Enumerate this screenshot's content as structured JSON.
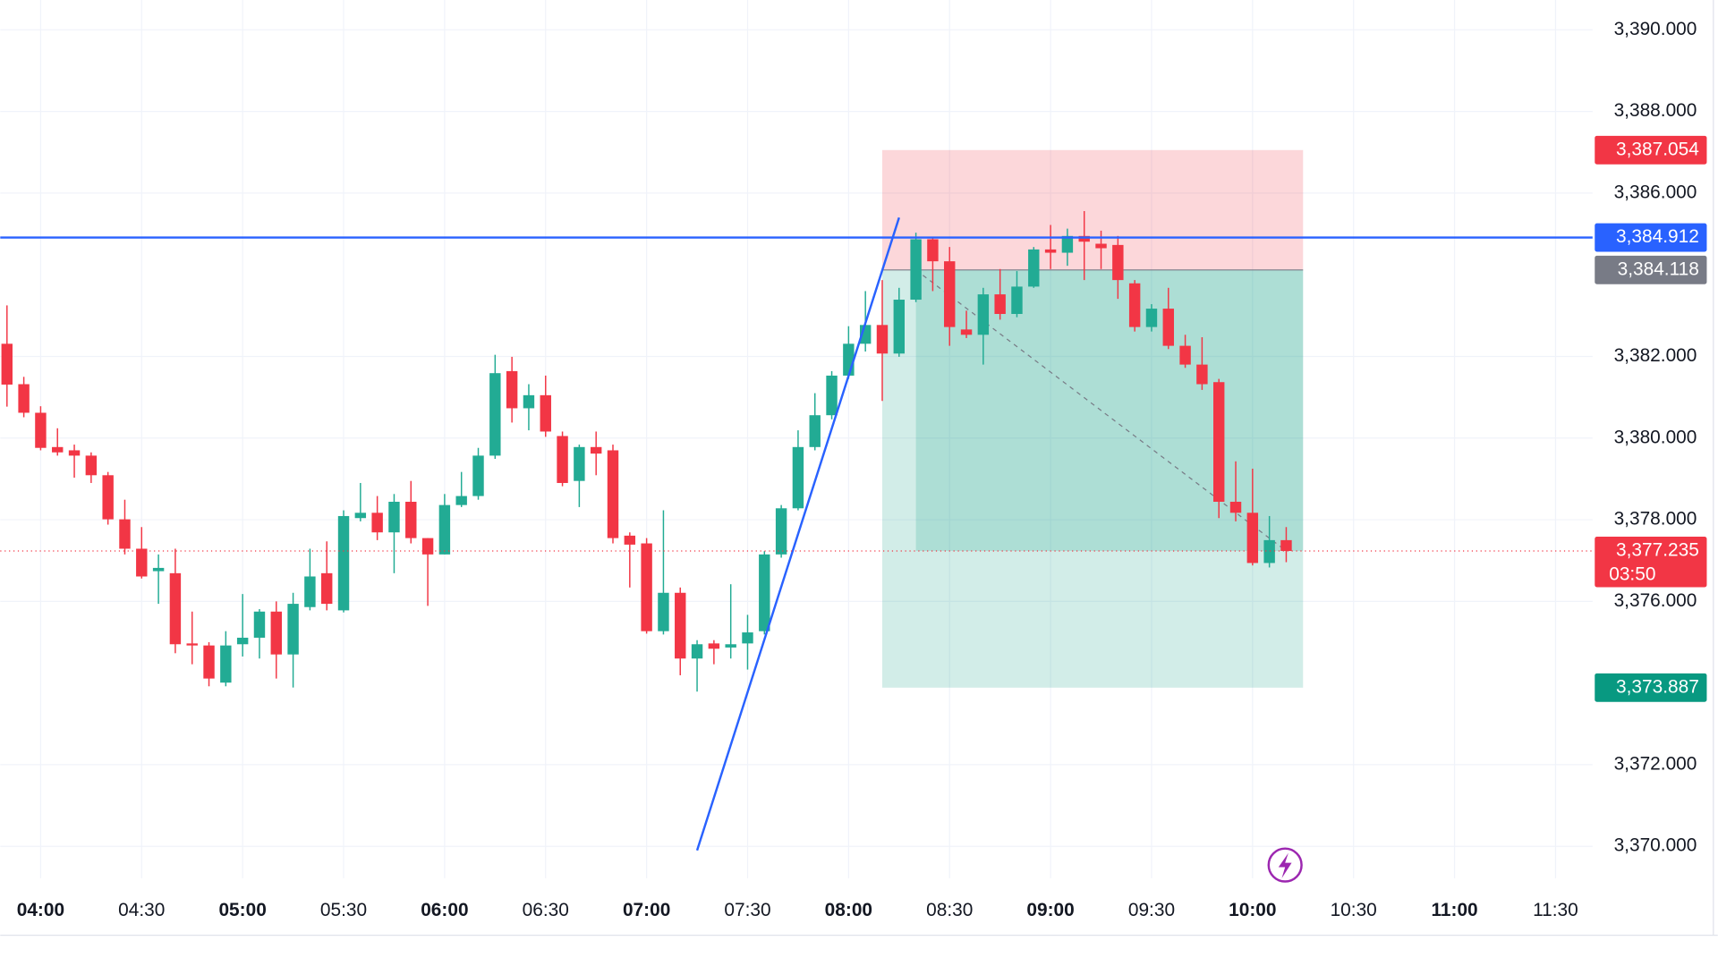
{
  "chart_data": {
    "type": "candlestick",
    "x": [
      "03:50",
      "03:55",
      "04:00",
      "04:05",
      "04:10",
      "04:15",
      "04:20",
      "04:25",
      "04:30",
      "04:35",
      "04:40",
      "04:45",
      "04:50",
      "04:55",
      "05:00",
      "05:05",
      "05:10",
      "05:15",
      "05:20",
      "05:25",
      "05:30",
      "05:35",
      "05:40",
      "05:45",
      "05:50",
      "05:55",
      "06:00",
      "06:05",
      "06:10",
      "06:15",
      "06:20",
      "06:25",
      "06:30",
      "06:35",
      "06:40",
      "06:45",
      "06:50",
      "06:55",
      "07:00",
      "07:05",
      "07:10",
      "07:15",
      "07:20",
      "07:25",
      "07:30",
      "07:35",
      "07:40",
      "07:45",
      "07:50",
      "07:55",
      "08:00",
      "08:05",
      "08:10",
      "08:15",
      "08:20",
      "08:25",
      "08:30",
      "08:35",
      "08:40",
      "08:45",
      "08:50",
      "08:55",
      "09:00",
      "09:05",
      "09:10",
      "09:15",
      "09:20",
      "09:25",
      "09:30",
      "09:35",
      "09:40",
      "09:45",
      "09:50",
      "09:55",
      "10:00",
      "10:05",
      "10:10"
    ],
    "open": [
      3382.31,
      3381.32,
      3380.62,
      3379.78,
      3379.7,
      3379.57,
      3379.09,
      3378.01,
      3377.29,
      3376.74,
      3376.69,
      3374.97,
      3374.92,
      3374.01,
      3374.95,
      3375.11,
      3375.75,
      3374.7,
      3375.86,
      3376.69,
      3375.78,
      3378.04,
      3378.17,
      3377.69,
      3378.44,
      3377.55,
      3377.15,
      3378.36,
      3378.58,
      3379.57,
      3381.64,
      3380.73,
      3381.05,
      3380.05,
      3378.95,
      3379.78,
      3379.7,
      3377.61,
      3377.42,
      3375.27,
      3376.21,
      3374.6,
      3374.97,
      3374.87,
      3374.97,
      3375.27,
      3377.15,
      3378.28,
      3379.78,
      3380.56,
      3381.53,
      3382.31,
      3382.77,
      3382.07,
      3383.39,
      3384.87,
      3384.33,
      3382.66,
      3382.53,
      3383.52,
      3383.04,
      3383.71,
      3384.62,
      3384.54,
      3384.95,
      3384.76,
      3384.73,
      3383.79,
      3382.72,
      3383.17,
      3382.26,
      3381.8,
      3381.37,
      3378.44,
      3378.17,
      3376.94,
      3377.5
    ],
    "high": [
      3383.25,
      3381.5,
      3380.78,
      3380.24,
      3379.84,
      3379.65,
      3379.17,
      3378.49,
      3377.82,
      3377.15,
      3377.29,
      3375.75,
      3375.0,
      3375.27,
      3376.18,
      3375.81,
      3376.0,
      3376.21,
      3377.29,
      3377.47,
      3378.23,
      3378.9,
      3378.58,
      3378.63,
      3378.95,
      3377.55,
      3378.63,
      3379.17,
      3379.76,
      3382.04,
      3381.99,
      3381.32,
      3381.53,
      3380.16,
      3379.84,
      3380.16,
      3379.84,
      3377.69,
      3377.55,
      3378.23,
      3376.34,
      3375.05,
      3375.05,
      3376.42,
      3375.67,
      3377.23,
      3378.36,
      3380.19,
      3381.1,
      3381.64,
      3382.74,
      3383.6,
      3383.87,
      3383.68,
      3385.03,
      3384.92,
      3384.68,
      3383.12,
      3383.68,
      3384.14,
      3384.09,
      3384.68,
      3385.22,
      3385.13,
      3385.56,
      3385.08,
      3384.95,
      3383.87,
      3383.28,
      3383.68,
      3382.53,
      3382.47,
      3381.45,
      3379.43,
      3379.25,
      3378.09,
      3377.82
    ],
    "low": [
      3380.77,
      3380.51,
      3379.7,
      3379.57,
      3379.03,
      3378.9,
      3377.88,
      3377.15,
      3376.56,
      3375.94,
      3374.73,
      3374.46,
      3373.92,
      3373.92,
      3374.65,
      3374.6,
      3374.11,
      3373.89,
      3375.78,
      3375.78,
      3375.73,
      3377.96,
      3377.5,
      3376.69,
      3377.42,
      3375.89,
      3377.15,
      3378.31,
      3378.49,
      3379.49,
      3380.38,
      3380.19,
      3380.03,
      3378.82,
      3378.31,
      3379.09,
      3377.42,
      3376.34,
      3375.21,
      3375.19,
      3374.19,
      3373.79,
      3374.46,
      3374.6,
      3374.33,
      3375.19,
      3377.07,
      3378.23,
      3379.7,
      3380.46,
      3381.45,
      3382.12,
      3380.91,
      3381.99,
      3383.33,
      3383.6,
      3382.26,
      3382.45,
      3381.8,
      3382.9,
      3382.96,
      3383.68,
      3384.14,
      3384.22,
      3383.87,
      3384.14,
      3383.41,
      3382.61,
      3382.61,
      3382.18,
      3381.72,
      3381.18,
      3378.04,
      3377.96,
      3376.88,
      3376.83,
      3376.96
    ],
    "close": [
      3381.31,
      3380.62,
      3379.76,
      3379.65,
      3379.57,
      3379.09,
      3378.01,
      3377.29,
      3376.61,
      3376.82,
      3374.95,
      3374.92,
      3374.11,
      3374.92,
      3375.11,
      3375.75,
      3374.7,
      3375.94,
      3376.61,
      3375.94,
      3378.09,
      3378.17,
      3377.69,
      3378.44,
      3377.55,
      3377.15,
      3378.36,
      3378.58,
      3379.57,
      3381.59,
      3380.73,
      3381.05,
      3380.16,
      3378.9,
      3379.78,
      3379.62,
      3377.55,
      3377.39,
      3375.27,
      3376.21,
      3374.6,
      3374.95,
      3374.84,
      3374.95,
      3375.24,
      3377.15,
      3378.28,
      3379.78,
      3380.56,
      3381.53,
      3382.31,
      3382.77,
      3382.07,
      3383.39,
      3384.87,
      3384.33,
      3382.72,
      3382.53,
      3383.52,
      3383.04,
      3383.71,
      3384.62,
      3384.54,
      3384.95,
      3384.81,
      3384.65,
      3383.87,
      3382.72,
      3383.17,
      3382.26,
      3381.8,
      3381.32,
      3378.44,
      3378.17,
      3376.94,
      3377.5,
      3377.235
    ],
    "up_color": "#22ab94",
    "down_color": "#f23645",
    "xlim": [
      "03:48",
      "11:41"
    ],
    "xticks": [
      "04:00",
      "04:30",
      "05:00",
      "05:30",
      "06:00",
      "06:30",
      "07:00",
      "07:30",
      "08:00",
      "08:30",
      "09:00",
      "09:30",
      "10:00",
      "10:30",
      "11:00",
      "11:30"
    ],
    "ylim": [
      3369.22,
      3390.73
    ],
    "yticks": [
      {
        "value": 3370,
        "label": "3,370.000"
      },
      {
        "value": 3372,
        "label": "3,372.000"
      },
      {
        "value": 3376,
        "label": "3,376.000"
      },
      {
        "value": 3378,
        "label": "3,378.000"
      },
      {
        "value": 3380,
        "label": "3,380.000"
      },
      {
        "value": 3382,
        "label": "3,382.000"
      },
      {
        "value": 3386,
        "label": "3,386.000"
      },
      {
        "value": 3388,
        "label": "3,388.000"
      },
      {
        "value": 3390,
        "label": "3,390.000"
      }
    ],
    "grid": true,
    "current_price": {
      "value": 3377.235,
      "label": "3,377.235",
      "countdown": "03:50",
      "color": "#f23645"
    },
    "horizontal_line": {
      "value": 3384.912,
      "label": "3,384.912",
      "color": "#2962ff"
    },
    "trend_line": {
      "x": [
        "07:15",
        "08:15"
      ],
      "y": [
        3369.9,
        3385.4
      ],
      "color": "#2962ff"
    },
    "position": {
      "x_start": "08:10",
      "x_end": "10:15",
      "fill_start": "08:20",
      "stop": {
        "value": 3387.054,
        "label": "3,387.054",
        "color": "#f23645"
      },
      "entry": {
        "value": 3384.118,
        "label": "3,384.118",
        "color": "#787b86"
      },
      "target": {
        "value": 3373.887,
        "label": "3,373.887",
        "color": "#089981"
      }
    }
  }
}
